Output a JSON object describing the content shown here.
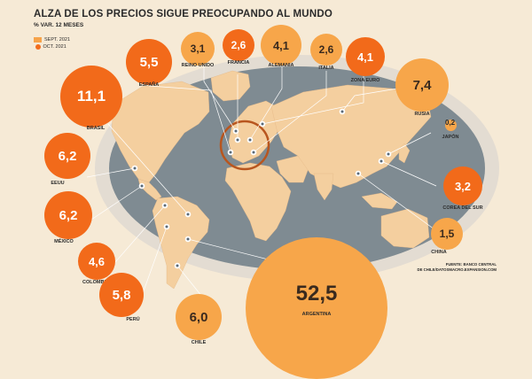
{
  "title": "ALZA DE LOS PRECIOS SIGUE PREOCUPANDO AL MUNDO",
  "subtitle": "% VAR. 12 MESES",
  "legend": [
    {
      "label": "SEPT. 2021",
      "color": "#f6a34a",
      "shape": "square"
    },
    {
      "label": "OCT. 2021",
      "color": "#f26d1d",
      "shape": "circle"
    }
  ],
  "source": [
    "FUENTE: BANCO CENTRAL",
    "DE CHILE/DATOSMACRO.EXPANSION.COM"
  ],
  "colors": {
    "ocean": "#7f8b92",
    "land": "#f4cf9f",
    "bubble_dark": "#f26a1a",
    "bubble_light": "#f7a64a",
    "background": "#f6ead6"
  },
  "countries": [
    {
      "name": "ESPAÑA",
      "value": "5,5",
      "month": "oct"
    },
    {
      "name": "REINO UNIDO",
      "value": "3,1",
      "month": "sept"
    },
    {
      "name": "FRANCIA",
      "value": "2,6",
      "month": "oct"
    },
    {
      "name": "ALEMANIA",
      "value": "4,1",
      "month": "sept"
    },
    {
      "name": "ITALIA",
      "value": "2,6",
      "month": "sept"
    },
    {
      "name": "ZONA EURO",
      "value": "4,1",
      "month": "oct"
    },
    {
      "name": "RUSIA",
      "value": "7,4",
      "month": "sept"
    },
    {
      "name": "JAPÓN",
      "value": "0,2",
      "month": "sept"
    },
    {
      "name": "BRASIL",
      "value": "11,1",
      "month": "oct"
    },
    {
      "name": "EEUU",
      "value": "6,2",
      "month": "oct"
    },
    {
      "name": "MÉXICO",
      "value": "6,2",
      "month": "oct"
    },
    {
      "name": "COLOMBIA",
      "value": "4,6",
      "month": "oct"
    },
    {
      "name": "PERÚ",
      "value": "5,8",
      "month": "oct"
    },
    {
      "name": "CHILE",
      "value": "6,0",
      "month": "oct"
    },
    {
      "name": "ARGENTINA",
      "value": "52,5",
      "month": "sept"
    },
    {
      "name": "COREA DEL SUR",
      "value": "3,2",
      "month": "oct"
    },
    {
      "name": "CHINA",
      "value": "1,5",
      "month": "sept"
    }
  ]
}
